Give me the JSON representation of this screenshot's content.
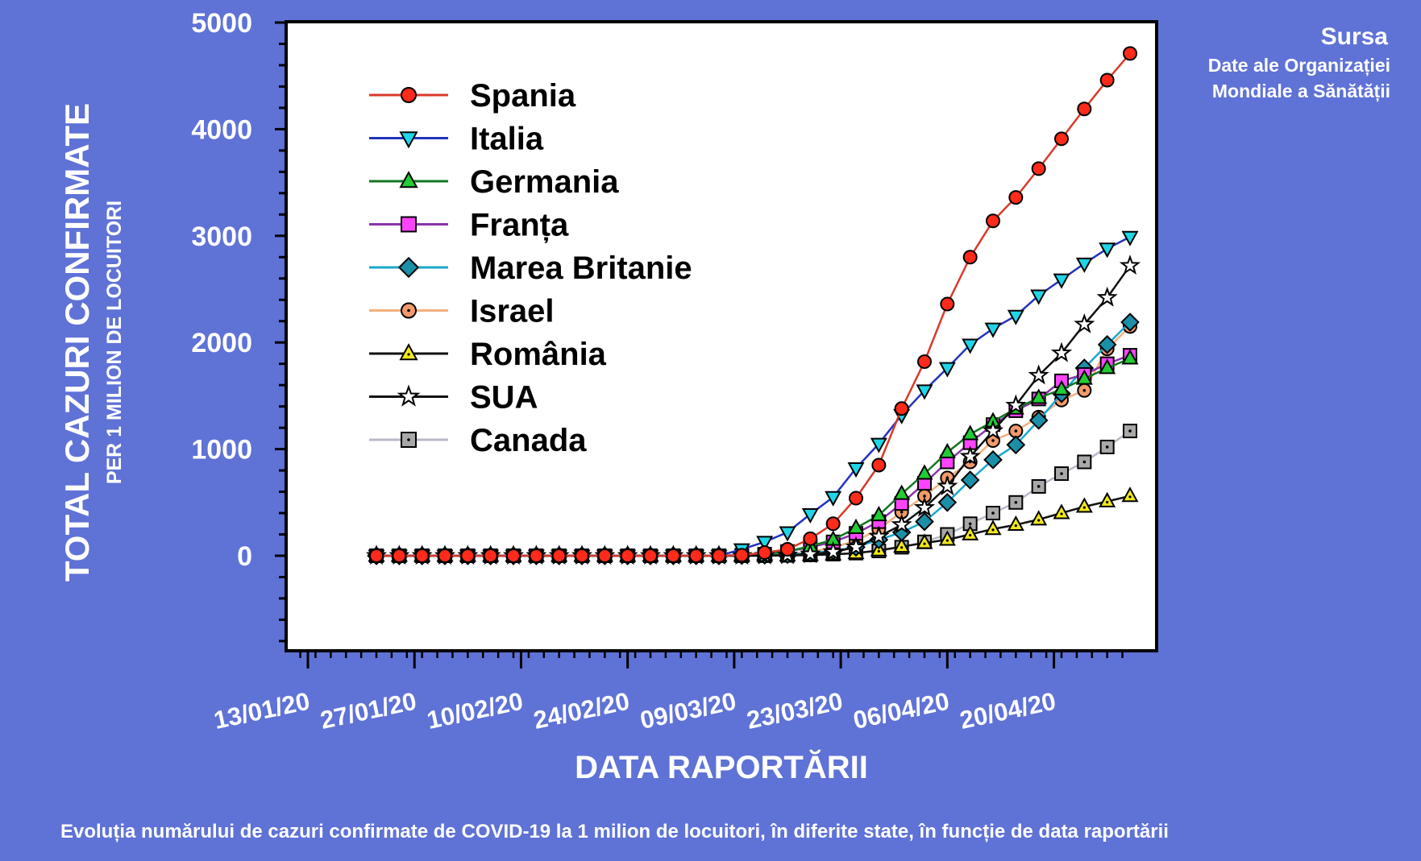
{
  "source": {
    "title": "Sursa",
    "line1": "Date ale Organizației",
    "line2": "Mondiale a Sănătății"
  },
  "caption": "Evoluția numărului de cazuri confirmate de COVID-19 la 1 milion de locuitori, în diferite state, în funcție de data raportării",
  "chart_data": {
    "type": "line",
    "ylabel": "TOTAL CAZURI CONFIRMATE",
    "ylabel_sub": "PER 1 MILION DE LOCUITORI",
    "xlabel": "DATA RAPORTĂRII",
    "ylim": [
      -900,
      5000
    ],
    "xlim": [
      "2020-01-13",
      "2020-04-30"
    ],
    "y_ticks": [
      0,
      1000,
      2000,
      3000,
      4000,
      5000
    ],
    "x_ticks": [
      "2020-01-13",
      "2020-01-27",
      "2020-02-10",
      "2020-02-24",
      "2020-03-09",
      "2020-03-23",
      "2020-04-06",
      "2020-04-20"
    ],
    "x_tick_labels": [
      "13/01/20",
      "27/01/20",
      "10/02/20",
      "24/02/20",
      "09/03/20",
      "23/03/20",
      "06/04/20",
      "20/04/20"
    ],
    "x_start": "2020-01-22",
    "x_step_days": 3,
    "grid": false,
    "legend_position": "top-left",
    "series": [
      {
        "name": "Spania",
        "color": "#ff2a1a",
        "line": "#d83a2a",
        "marker": "circle",
        "values": [
          0,
          0,
          0,
          0,
          0,
          0,
          0,
          0,
          0,
          0,
          0,
          0,
          0,
          0,
          0,
          0,
          5,
          30,
          60,
          160,
          300,
          540,
          850,
          1380,
          1820,
          2360,
          2800,
          3140,
          3360,
          3630,
          3910,
          4190,
          4460,
          4710
        ]
      },
      {
        "name": "Italia",
        "color": "#1fd6e8",
        "line": "#2233bb",
        "marker": "triangle-down",
        "values": [
          0,
          0,
          0,
          0,
          0,
          0,
          0,
          0,
          0,
          0,
          0,
          0,
          0,
          0,
          0,
          0,
          60,
          130,
          220,
          390,
          550,
          820,
          1050,
          1320,
          1550,
          1760,
          1980,
          2130,
          2250,
          2440,
          2590,
          2740,
          2880,
          2990
        ]
      },
      {
        "name": "Germania",
        "color": "#22cc33",
        "line": "#117722",
        "marker": "triangle",
        "values": [
          0,
          0,
          0,
          0,
          0,
          0,
          0,
          0,
          0,
          0,
          0,
          0,
          0,
          0,
          0,
          0,
          5,
          15,
          40,
          90,
          150,
          260,
          380,
          580,
          770,
          970,
          1140,
          1260,
          1380,
          1480,
          1560,
          1660,
          1760,
          1850
        ]
      },
      {
        "name": "Franța",
        "color": "#ff44ff",
        "line": "#8833aa",
        "marker": "square",
        "values": [
          0,
          0,
          0,
          0,
          0,
          0,
          0,
          0,
          0,
          0,
          0,
          0,
          0,
          0,
          0,
          0,
          5,
          15,
          40,
          80,
          130,
          210,
          320,
          490,
          680,
          880,
          1060,
          1230,
          1360,
          1470,
          1640,
          1700,
          1800,
          1880
        ]
      },
      {
        "name": "Marea Britanie",
        "color": "#1c8fa8",
        "line": "#1aa8cc",
        "marker": "diamond",
        "values": [
          0,
          0,
          0,
          0,
          0,
          0,
          0,
          0,
          0,
          0,
          0,
          0,
          0,
          0,
          0,
          0,
          2,
          5,
          12,
          25,
          45,
          80,
          150,
          220,
          320,
          500,
          710,
          900,
          1040,
          1270,
          1520,
          1760,
          1980,
          2190
        ]
      },
      {
        "name": "Israel",
        "color": "#f29a6a",
        "line": "#f2b080",
        "marker": "circle-dot",
        "values": [
          0,
          0,
          0,
          0,
          0,
          0,
          0,
          0,
          0,
          0,
          0,
          0,
          0,
          0,
          0,
          0,
          2,
          5,
          12,
          35,
          80,
          140,
          250,
          410,
          560,
          730,
          880,
          1080,
          1170,
          1300,
          1460,
          1550,
          1940,
          2150
        ]
      },
      {
        "name": "România",
        "color": "#f2e81a",
        "line": "#111111",
        "marker": "triangle-dot",
        "values": [
          0,
          0,
          0,
          0,
          0,
          0,
          0,
          0,
          0,
          0,
          0,
          0,
          0,
          0,
          0,
          0,
          0,
          1,
          3,
          6,
          12,
          25,
          50,
          85,
          120,
          150,
          200,
          250,
          290,
          340,
          400,
          460,
          510,
          560
        ]
      },
      {
        "name": "SUA",
        "color": "#ffffff",
        "line": "#111111",
        "marker": "star",
        "values": [
          0,
          0,
          0,
          0,
          0,
          0,
          0,
          0,
          0,
          0,
          0,
          0,
          0,
          0,
          0,
          0,
          0,
          2,
          5,
          15,
          35,
          80,
          180,
          290,
          450,
          650,
          930,
          1170,
          1410,
          1690,
          1900,
          2170,
          2420,
          2720
        ]
      },
      {
        "name": "Canada",
        "color": "#a8a8a8",
        "line": "#b8b8c8",
        "marker": "square-dot",
        "values": [
          0,
          0,
          0,
          0,
          0,
          0,
          0,
          0,
          0,
          0,
          0,
          0,
          0,
          0,
          0,
          0,
          0,
          1,
          4,
          8,
          15,
          25,
          45,
          80,
          130,
          200,
          300,
          400,
          500,
          650,
          770,
          880,
          1020,
          1170
        ]
      }
    ]
  }
}
